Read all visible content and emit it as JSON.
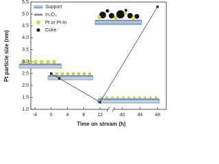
{
  "chart_data": {
    "type": "line",
    "ylabel": "Pt particle size (nm)",
    "xlabel": "Time on stream (h)",
    "x": [
      0,
      2,
      12,
      48
    ],
    "series": [
      {
        "name": "Pt particle size",
        "color": "#333333",
        "values": [
          2.5,
          2.3,
          1.3,
          5.3
        ]
      }
    ],
    "xlim": [
      -5,
      50
    ],
    "xbreak": [
      14,
      38
    ],
    "xticks": [
      -4,
      0,
      4,
      8,
      12,
      40,
      44,
      48
    ],
    "ylim": [
      1.0,
      5.5
    ],
    "yticks": [
      {
        "value": 1.0,
        "label": "1.0"
      },
      1.5,
      {
        "value": 2.0,
        "label": "2.0"
      },
      2.5,
      {
        "value": 3.0,
        "label": "3.0"
      },
      3.5,
      {
        "value": 4.0,
        "label": "4.0"
      },
      4.5,
      {
        "value": 5.0,
        "label": "5.0"
      },
      5.5
    ],
    "legend": [
      "Support",
      "In₂O₃",
      "Pt or Pt-In",
      "Coke"
    ]
  }
}
